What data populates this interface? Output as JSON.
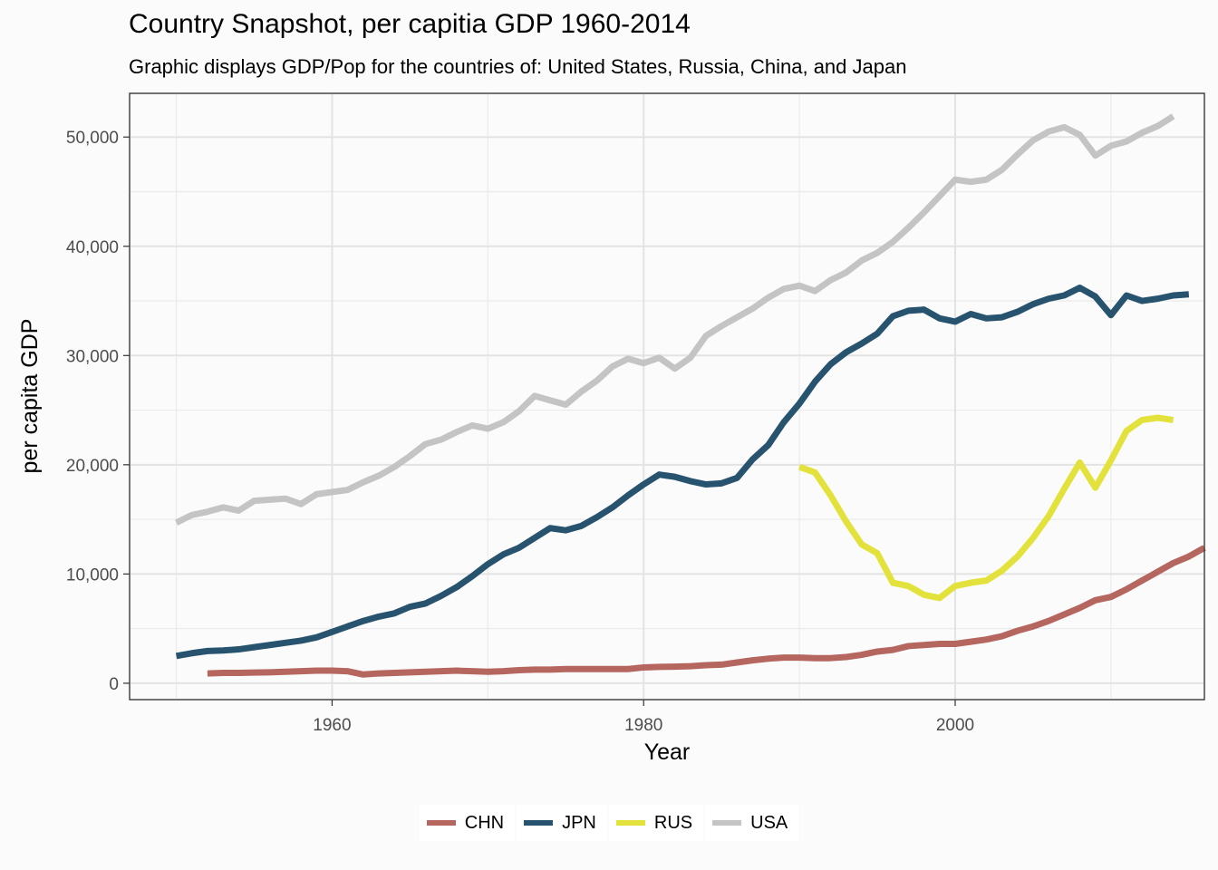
{
  "chart_data": {
    "type": "line",
    "title": "Country Snapshot, per capitia GDP 1960-2014",
    "subtitle": "Graphic displays GDP/Pop for the countries of: United States, Russia, China, and Japan",
    "xlabel": "Year",
    "ylabel": "per capita GDP",
    "xlim": [
      1947,
      2016
    ],
    "ylim": [
      -1500,
      54000
    ],
    "x_ticks": [
      1960,
      1980,
      2000
    ],
    "x_tick_labels": [
      "1960",
      "1980",
      "2000"
    ],
    "y_ticks": [
      0,
      10000,
      20000,
      30000,
      40000,
      50000
    ],
    "y_tick_labels": [
      "0",
      "10,000",
      "20,000",
      "30,000",
      "40,000",
      "50,000"
    ],
    "grid": true,
    "legend_position": "bottom",
    "series": [
      {
        "name": "CHN",
        "color": "#b5665f",
        "start_year": 1952,
        "values": [
          900,
          950,
          950,
          980,
          1000,
          1050,
          1100,
          1150,
          1150,
          1100,
          800,
          900,
          950,
          1000,
          1050,
          1100,
          1150,
          1100,
          1050,
          1100,
          1200,
          1250,
          1250,
          1300,
          1300,
          1300,
          1300,
          1300,
          1450,
          1500,
          1520,
          1560,
          1650,
          1700,
          1900,
          2100,
          2250,
          2350,
          2350,
          2300,
          2300,
          2400,
          2600,
          2900,
          3050,
          3400,
          3500,
          3600,
          3600,
          3800,
          4000,
          4300,
          4800,
          5200,
          5700,
          6300,
          6900,
          7600,
          7900,
          8600,
          9400,
          10200,
          11000,
          11600,
          12400
        ]
      },
      {
        "name": "JPN",
        "color": "#27536f",
        "start_year": 1950,
        "values": [
          2500,
          2750,
          2950,
          3000,
          3100,
          3300,
          3500,
          3700,
          3900,
          4200,
          4700,
          5200,
          5700,
          6100,
          6400,
          7000,
          7300,
          8000,
          8800,
          9800,
          10900,
          11800,
          12400,
          13300,
          14200,
          14000,
          14400,
          15200,
          16100,
          17200,
          18200,
          19100,
          18900,
          18500,
          18200,
          18300,
          18800,
          20500,
          21800,
          23900,
          25600,
          27600,
          29200,
          30300,
          31100,
          32000,
          33600,
          34100,
          34200,
          33400,
          33100,
          33800,
          33400,
          33500,
          34000,
          34700,
          35200,
          35500,
          36200,
          35400,
          33700,
          35500,
          35000,
          35200,
          35500,
          35600
        ]
      },
      {
        "name": "RUS",
        "color": "#e3e23c",
        "start_year": 1990,
        "values": [
          19800,
          19300,
          17200,
          14800,
          12700,
          11900,
          9200,
          8900,
          8100,
          7800,
          8900,
          9200,
          9400,
          10300,
          11600,
          13300,
          15300,
          17800,
          20200,
          17900,
          20400,
          23100,
          24100,
          24300,
          24100
        ]
      },
      {
        "name": "USA",
        "color": "#c4c4c4",
        "start_year": 1950,
        "values": [
          14700,
          15400,
          15700,
          16100,
          15800,
          16700,
          16800,
          16900,
          16400,
          17300,
          17500,
          17700,
          18400,
          19000,
          19800,
          20800,
          21900,
          22300,
          23000,
          23600,
          23300,
          23900,
          24900,
          26300,
          25900,
          25500,
          26700,
          27700,
          29000,
          29700,
          29300,
          29800,
          28800,
          29800,
          31800,
          32700,
          33500,
          34300,
          35300,
          36100,
          36400,
          35900,
          36900,
          37600,
          38700,
          39400,
          40400,
          41700,
          43100,
          44600,
          46100,
          45900,
          46100,
          47000,
          48400,
          49700,
          50500,
          50900,
          50200,
          48300,
          49200,
          49600,
          50400,
          51000,
          51900
        ]
      }
    ]
  }
}
